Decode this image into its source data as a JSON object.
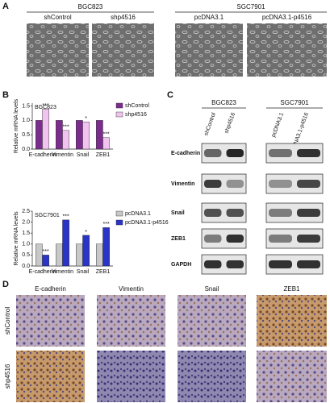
{
  "panel_a": {
    "label": "A",
    "groups": [
      {
        "title": "BGC823",
        "samples": [
          "shControl",
          "shp4516"
        ]
      },
      {
        "title": "SGC7901",
        "samples": [
          "pcDNA3.1",
          "pcDNA3.1-p4516"
        ]
      }
    ]
  },
  "panel_b": {
    "label": "B"
  },
  "chart_data": [
    {
      "type": "bar",
      "title": "BGC823",
      "y_label": "Relative mRNA levels",
      "categories": [
        "E-cadherin",
        "Vimentin",
        "Snail",
        "ZEB1"
      ],
      "series": [
        {
          "name": "shControl",
          "color": "#7b2d8e",
          "values": [
            1.0,
            1.0,
            1.0,
            1.0
          ]
        },
        {
          "name": "shp4516",
          "color": "#f0c4ee",
          "values": [
            1.4,
            0.65,
            0.95,
            0.4
          ]
        }
      ],
      "significance": [
        "***",
        "***",
        "*",
        "***"
      ],
      "ylim": [
        0,
        1.6
      ],
      "yticks": [
        {
          "value": 0,
          "label": "0.0"
        },
        {
          "value": 0.5,
          "label": "0.5"
        },
        {
          "value": 1,
          "label": "1.0"
        },
        {
          "value": 1.5,
          "label": "1.5"
        }
      ]
    },
    {
      "type": "bar",
      "title": "SGC7901",
      "y_label": "Relative mRNA levels",
      "categories": [
        "E-cadherin",
        "Vimentin",
        "Snail",
        "ZEB1"
      ],
      "series": [
        {
          "name": "pcDNA3.1",
          "color": "#c8c8c8",
          "values": [
            1.0,
            1.0,
            1.0,
            1.0
          ]
        },
        {
          "name": "pcDNA3.1-p4516",
          "color": "#2a35c8",
          "values": [
            0.5,
            2.1,
            1.4,
            1.75
          ]
        }
      ],
      "significance": [
        "***",
        "***",
        "*",
        "***"
      ],
      "ylim": [
        0,
        2.5
      ],
      "yticks": [
        {
          "value": 0,
          "label": "0.0"
        },
        {
          "value": 0.5,
          "label": "0.5"
        },
        {
          "value": 1,
          "label": "1.0"
        },
        {
          "value": 1.5,
          "label": "1.5"
        },
        {
          "value": 2,
          "label": "2.0"
        },
        {
          "value": 2.5,
          "label": "2.5"
        }
      ]
    }
  ],
  "panel_c": {
    "label": "C",
    "groups": [
      {
        "title": "BGC823",
        "samples": [
          "shControl",
          "shp4516"
        ]
      },
      {
        "title": "SGC7901",
        "samples": [
          "pcDNA3.1",
          "pcDNA3.1-p4516"
        ]
      }
    ],
    "proteins": [
      "E-cadherin",
      "Vimentin",
      "Snail",
      "ZEB1",
      "GAPDH"
    ]
  },
  "panel_d": {
    "label": "D",
    "columns": [
      "E-cadherin",
      "Vimentin",
      "Snail",
      "ZEB1"
    ],
    "rows": [
      "shControl",
      "shp4516"
    ]
  }
}
